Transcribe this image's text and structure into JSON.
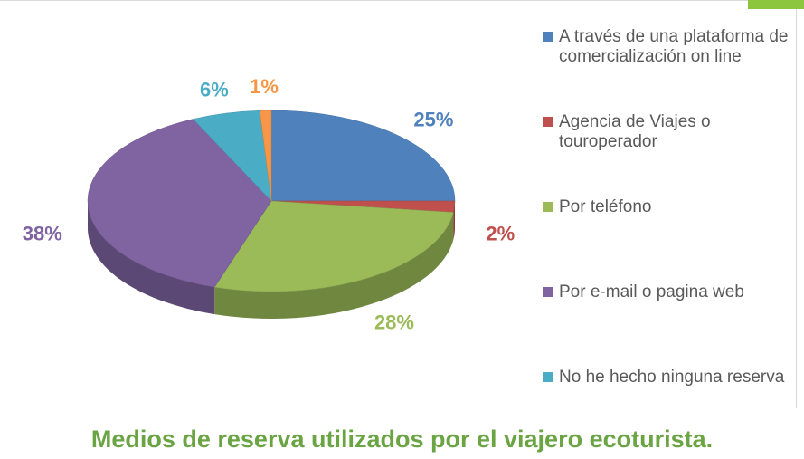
{
  "chart_data": {
    "type": "pie",
    "title": "Medios de reserva utilizados por el viajero ecoturista.",
    "categories": [
      "A través de una plataforma de comercialización on line",
      "Agencia de Viajes o touroperador",
      "Por teléfono",
      "Por e-mail o pagina web",
      "No he hecho ninguna reserva",
      null
    ],
    "values": [
      25,
      2,
      28,
      38,
      6,
      1
    ],
    "value_labels": [
      "25%",
      "2%",
      "28%",
      "38%",
      "6%",
      "1%"
    ],
    "colors": [
      "#4f81bd",
      "#c0504d",
      "#9bbb59",
      "#8064a2",
      "#4bacc6",
      "#f79646"
    ],
    "legend": "right"
  }
}
